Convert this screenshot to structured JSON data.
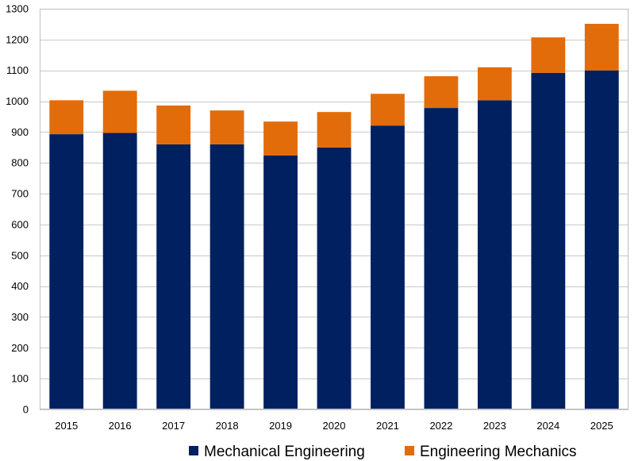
{
  "chart_data": {
    "type": "bar",
    "stacked": true,
    "title": "",
    "xlabel": "",
    "ylabel": "",
    "ylim": [
      0,
      1300
    ],
    "y_ticks": [
      0,
      100,
      200,
      300,
      400,
      500,
      600,
      700,
      800,
      900,
      1000,
      1100,
      1200,
      1300
    ],
    "grid": true,
    "legend_position": "bottom",
    "categories": [
      "2015",
      "2016",
      "2017",
      "2018",
      "2019",
      "2020",
      "2021",
      "2022",
      "2023",
      "2024",
      "2025"
    ],
    "series": [
      {
        "name": "Mechanical Engineering",
        "color": "#002060",
        "values": [
          893,
          897,
          860,
          860,
          824,
          850,
          921,
          978,
          1003,
          1092,
          1100
        ]
      },
      {
        "name": "Engineering Mechanics",
        "color": "#E36C0A",
        "values": [
          110,
          137,
          126,
          110,
          110,
          115,
          103,
          103,
          107,
          115,
          151
        ]
      }
    ]
  }
}
